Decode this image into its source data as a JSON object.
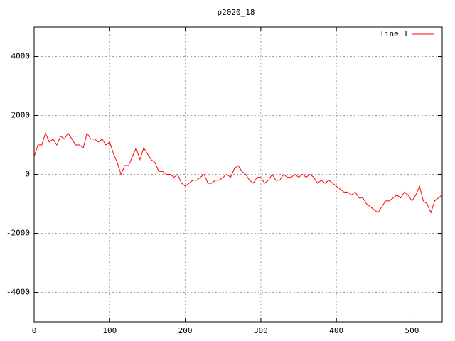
{
  "chart_data": {
    "type": "line",
    "title": "p2020_18",
    "x": [
      0,
      5,
      10,
      15,
      20,
      25,
      30,
      35,
      40,
      45,
      50,
      55,
      60,
      65,
      70,
      75,
      80,
      85,
      90,
      95,
      100,
      105,
      110,
      115,
      120,
      125,
      130,
      135,
      140,
      145,
      150,
      155,
      160,
      165,
      170,
      175,
      180,
      185,
      190,
      195,
      200,
      205,
      210,
      215,
      220,
      225,
      230,
      235,
      240,
      245,
      250,
      255,
      260,
      265,
      270,
      275,
      280,
      285,
      290,
      295,
      300,
      305,
      310,
      315,
      320,
      325,
      330,
      335,
      340,
      345,
      350,
      355,
      360,
      365,
      370,
      375,
      380,
      385,
      390,
      395,
      400,
      405,
      410,
      415,
      420,
      425,
      430,
      435,
      440,
      445,
      450,
      455,
      460,
      465,
      470,
      475,
      480,
      485,
      490,
      495,
      500,
      505,
      510,
      515,
      520,
      525,
      530,
      535,
      540
    ],
    "series": [
      {
        "name": "line 1",
        "color": "#ff0000",
        "values": [
          600,
          1000,
          1000,
          1400,
          1100,
          1200,
          1000,
          1300,
          1200,
          1400,
          1200,
          1000,
          1000,
          900,
          1400,
          1200,
          1200,
          1100,
          1200,
          1000,
          1100,
          700,
          400,
          0,
          300,
          300,
          600,
          900,
          500,
          900,
          700,
          500,
          400,
          100,
          100,
          0,
          0,
          -100,
          0,
          -300,
          -400,
          -300,
          -200,
          -200,
          -100,
          0,
          -300,
          -300,
          -200,
          -200,
          -100,
          0,
          -100,
          200,
          300,
          100,
          0,
          -200,
          -300,
          -100,
          -100,
          -300,
          -200,
          0,
          -200,
          -200,
          0,
          -100,
          -100,
          0,
          -100,
          0,
          -100,
          0,
          -100,
          -300,
          -200,
          -300,
          -200,
          -300,
          -400,
          -500,
          -600,
          -600,
          -700,
          -600,
          -800,
          -800,
          -1000,
          -1100,
          -1200,
          -1300,
          -1100,
          -900,
          -900,
          -800,
          -700,
          -800,
          -600,
          -700,
          -900,
          -700,
          -400,
          -900,
          -1000,
          -1300,
          -900,
          -800,
          -700
        ]
      }
    ],
    "xlim": [
      0,
      540
    ],
    "ylim": [
      -5000,
      5000
    ],
    "xticks": [
      0,
      100,
      200,
      300,
      400,
      500
    ],
    "yticks": [
      -4000,
      -2000,
      0,
      2000,
      4000
    ],
    "grid": true,
    "legend": "top-right"
  }
}
